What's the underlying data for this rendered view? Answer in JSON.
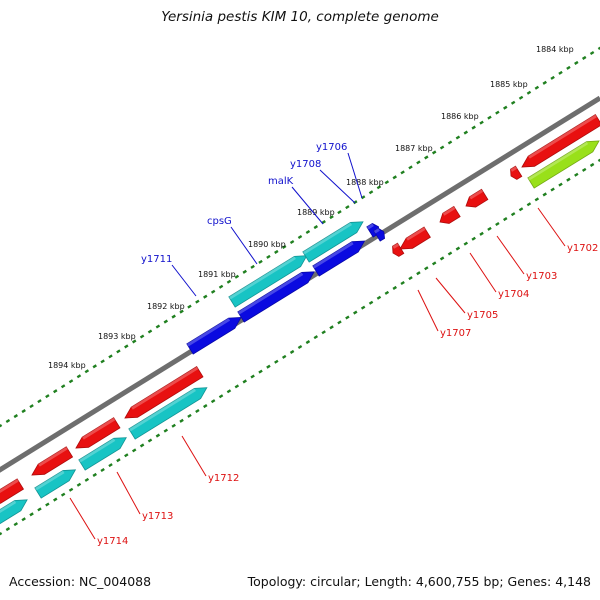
{
  "title": "Yersinia pestis KIM 10, complete genome",
  "footer": {
    "accession": "Accession: NC_004088",
    "topology": "Topology: circular; Length: 4,600,755 bp; Genes: 4,148"
  },
  "colors": {
    "backbone": "#6e6e6e",
    "tick": "#208020",
    "forward_label": "#1010cc",
    "reverse_label": "#dd1111",
    "red_gene": "#e81010",
    "cyan_gene": "#18c4c4",
    "blue_gene": "#0a0ae0",
    "green_gene": "#99e01a"
  },
  "scale_labels": [
    "1884 kbp",
    "1885 kbp",
    "1886 kbp",
    "1887 kbp",
    "1888 kbp",
    "1889 kbp",
    "1890 kbp",
    "1891 kbp",
    "1892 kbp",
    "1893 kbp",
    "1894 kbp"
  ],
  "gene_labels": [
    {
      "text": "y1706",
      "strand": "forward"
    },
    {
      "text": "y1708",
      "strand": "forward"
    },
    {
      "text": "malK",
      "strand": "forward"
    },
    {
      "text": "cpsG",
      "strand": "forward"
    },
    {
      "text": "y1711",
      "strand": "forward"
    },
    {
      "text": "y1702",
      "strand": "reverse"
    },
    {
      "text": "y1703",
      "strand": "reverse"
    },
    {
      "text": "y1704",
      "strand": "reverse"
    },
    {
      "text": "y1705",
      "strand": "reverse"
    },
    {
      "text": "y1707",
      "strand": "reverse"
    },
    {
      "text": "y1712",
      "strand": "reverse"
    },
    {
      "text": "y1713",
      "strand": "reverse"
    },
    {
      "text": "y1714",
      "strand": "reverse"
    }
  ]
}
